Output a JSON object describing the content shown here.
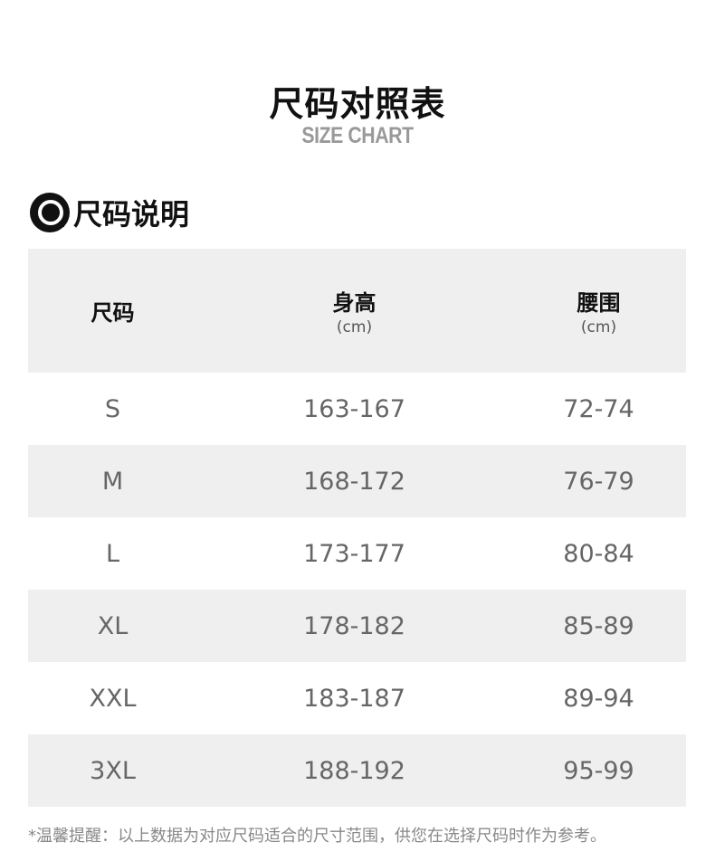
{
  "header": {
    "title": "尺码对照表",
    "subtitle": "SIZE CHART"
  },
  "section": {
    "icon": "search-icon",
    "label": "尺码说明"
  },
  "table": {
    "columns": [
      {
        "label": "尺码",
        "unit": ""
      },
      {
        "label": "身高",
        "unit": "(cm)"
      },
      {
        "label": "腰围",
        "unit": "(cm)"
      }
    ],
    "rows": [
      [
        "S",
        "163-167",
        "72-74"
      ],
      [
        "M",
        "168-172",
        "76-79"
      ],
      [
        "L",
        "173-177",
        "80-84"
      ],
      [
        "XL",
        "178-182",
        "85-89"
      ],
      [
        "XXL",
        "183-187",
        "89-94"
      ],
      [
        "3XL",
        "188-192",
        "95-99"
      ]
    ]
  },
  "note": "*温馨提醒：以上数据为对应尺码适合的尺寸范围，供您在选择尺码时作为参考。"
}
